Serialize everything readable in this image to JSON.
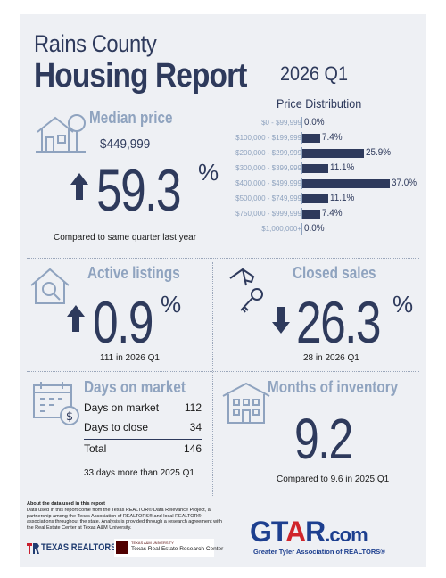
{
  "header": {
    "county": "Rains County",
    "report": "Housing Report",
    "period": "2026 Q1"
  },
  "median_price": {
    "title": "Median price",
    "value": "$449,999",
    "change": "59.3",
    "percent_sign": "%",
    "direction": "up",
    "note": "Compared to same quarter last year"
  },
  "price_distribution": {
    "title": "Price Distribution",
    "rows": [
      {
        "range": "$0 - $99,999",
        "pct": 0.0,
        "label": "0.0%"
      },
      {
        "range": "$100,000 - $199,999",
        "pct": 7.4,
        "label": "7.4%"
      },
      {
        "range": "$200,000 - $299,999",
        "pct": 25.9,
        "label": "25.9%"
      },
      {
        "range": "$300,000 - $399,999",
        "pct": 11.1,
        "label": "11.1%"
      },
      {
        "range": "$400,000 - $499,999",
        "pct": 37.0,
        "label": "37.0%"
      },
      {
        "range": "$500,000 - $749,999",
        "pct": 11.1,
        "label": "11.1%"
      },
      {
        "range": "$750,000 - $999,999",
        "pct": 7.4,
        "label": "7.4%"
      },
      {
        "range": "$1,000,000+",
        "pct": 0.0,
        "label": "0.0%"
      }
    ]
  },
  "active_listings": {
    "title": "Active listings",
    "change": "0.9",
    "percent_sign": "%",
    "direction": "up",
    "note": "111 in 2026 Q1"
  },
  "closed_sales": {
    "title": "Closed sales",
    "change": "26.3",
    "percent_sign": "%",
    "direction": "down",
    "note": "28 in 2026 Q1"
  },
  "days_on_market": {
    "title": "Days on market",
    "rows": [
      {
        "label": "Days on market",
        "value": "112"
      },
      {
        "label": "Days to close",
        "value": "34"
      }
    ],
    "total_label": "Total",
    "total_value": "146",
    "note": "33 days more than 2025 Q1"
  },
  "months_inventory": {
    "title": "Months of inventory",
    "value": "9.2",
    "note": "Compared to 9.6 in 2025 Q1"
  },
  "footer": {
    "about_title": "About the data used in this report",
    "about_text": "Data used in this report come from the Texas REALTOR® Data Relevance Project, a partnership among the Texas Association of REALTORS® and local REALTOR® associations throughout the state. Analysis is provided through a research agreement with the Real Estate Center at Texas A&M University.",
    "texas_realtors": "TEXAS REALTORS",
    "tamu_small": "TEXAS A&M UNIVERSITY",
    "tamu": "Texas Real Estate Research Center",
    "gtar_g": "GT",
    "gtar_a": "A",
    "gtar_r": "R",
    "gtar_com": ".com",
    "gtar_tagline": "Greater Tyler Association of REALTORS®"
  },
  "colors": {
    "navy": "#2e3a5c",
    "steel": "#8fa3bf",
    "gtar_blue": "#1d3f8f",
    "gtar_red": "#d0252b"
  }
}
